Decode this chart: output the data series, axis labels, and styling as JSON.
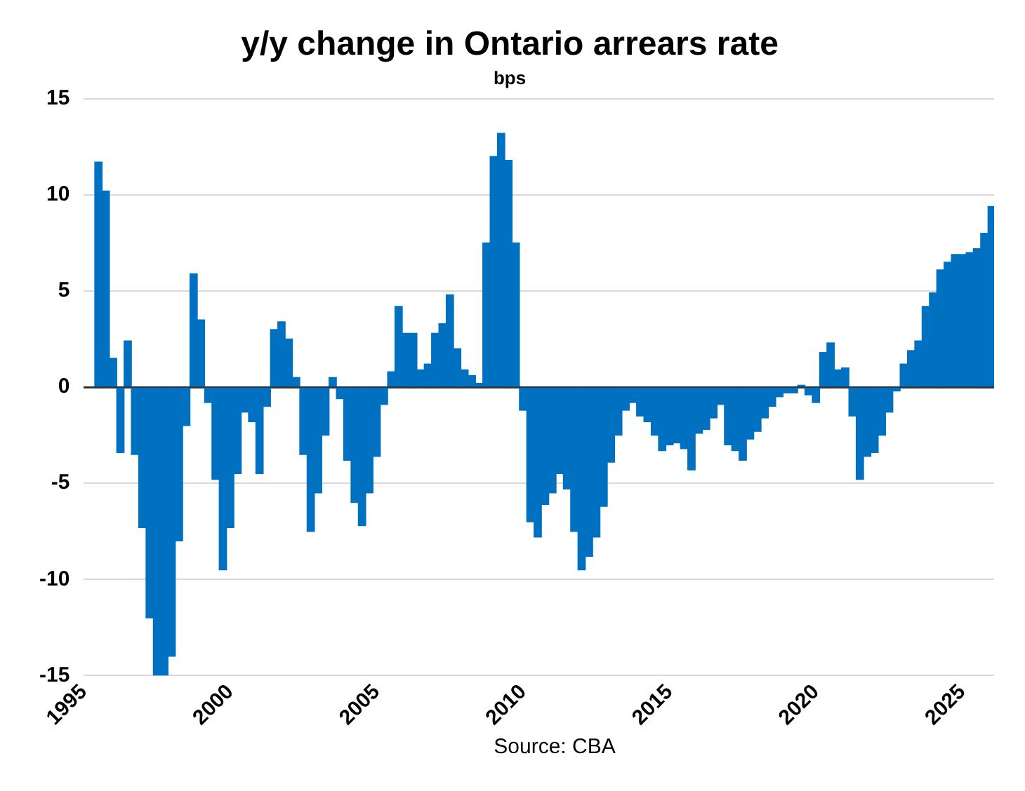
{
  "chart_data": {
    "type": "bar",
    "title": "y/y change in Ontario arrears rate",
    "subtitle": "bps",
    "annotations": [
      "Source:  CBA"
    ],
    "x": [
      "1995-07",
      "1995-10",
      "1996-01",
      "1996-04",
      "1996-07",
      "1996-10",
      "1997-01",
      "1997-04",
      "1997-07",
      "1997-10",
      "1998-01",
      "1998-04",
      "1998-07",
      "1998-10",
      "1999-01",
      "1999-04",
      "1999-07",
      "1999-10",
      "2000-01",
      "2000-04",
      "2000-07",
      "2000-10",
      "2001-01",
      "2001-04",
      "2001-07",
      "2001-10",
      "2002-01",
      "2002-04",
      "2002-07",
      "2002-10",
      "2003-01",
      "2003-04",
      "2003-07",
      "2003-10",
      "2004-01",
      "2004-04",
      "2004-07",
      "2004-10",
      "2005-01",
      "2005-04",
      "2005-07",
      "2005-10",
      "2006-01",
      "2006-04",
      "2006-07",
      "2006-10",
      "2007-01",
      "2007-04",
      "2007-07",
      "2007-10",
      "2008-01",
      "2008-04",
      "2008-07",
      "2008-10",
      "2009-01",
      "2009-04",
      "2009-07",
      "2009-10",
      "2010-01",
      "2010-04",
      "2010-07",
      "2010-10",
      "2011-01",
      "2011-04",
      "2011-07",
      "2011-10",
      "2012-01",
      "2012-04",
      "2012-07",
      "2012-10",
      "2013-01",
      "2013-04",
      "2013-07",
      "2013-10",
      "2014-01",
      "2014-04",
      "2014-07",
      "2014-10",
      "2015-01",
      "2015-04",
      "2015-07",
      "2015-10",
      "2016-01",
      "2016-04",
      "2016-07",
      "2016-10",
      "2017-01",
      "2017-04",
      "2017-07",
      "2017-10",
      "2018-01",
      "2018-04",
      "2018-07",
      "2018-10",
      "2019-01",
      "2019-04",
      "2019-07",
      "2019-10",
      "2020-01",
      "2020-04",
      "2020-07",
      "2020-10",
      "2021-01",
      "2021-04",
      "2021-07",
      "2021-10",
      "2022-01",
      "2022-04",
      "2022-07",
      "2022-10",
      "2023-01",
      "2023-04",
      "2023-07",
      "2023-10",
      "2024-01",
      "2024-04",
      "2024-07",
      "2024-10",
      "2025-01",
      "2025-04",
      "2025-07",
      "2025-10",
      "2026-01"
    ],
    "values": [
      11.7,
      10.2,
      1.5,
      -3.4,
      2.4,
      -3.5,
      -7.3,
      -12,
      -15,
      -15,
      -14,
      -8,
      -2,
      5.9,
      3.5,
      -0.8,
      -4.8,
      -9.5,
      -7.3,
      -4.5,
      -1.3,
      -1.8,
      -4.5,
      -1.0,
      3.0,
      3.4,
      2.5,
      0.5,
      -3.5,
      -7.5,
      -5.5,
      -2.5,
      0.5,
      -0.6,
      -3.8,
      -6,
      -7.2,
      -5.5,
      -3.6,
      -0.9,
      0.8,
      4.2,
      2.8,
      2.8,
      0.9,
      1.2,
      2.8,
      3.3,
      4.8,
      2,
      0.9,
      0.6,
      0.2,
      7.5,
      12,
      13.2,
      11.8,
      7.5,
      -1.2,
      -7,
      -7.8,
      -6.1,
      -5.5,
      -4.5,
      -5.3,
      -7.5,
      -9.5,
      -8.8,
      -7.8,
      -6.2,
      -3.9,
      -2.5,
      -1.2,
      -0.8,
      -1.5,
      -1.8,
      -2.5,
      -3.3,
      -3.0,
      -2.9,
      -3.2,
      -4.3,
      -2.4,
      -2.2,
      -1.6,
      -0.9,
      -3.0,
      -3.3,
      -3.8,
      -2.7,
      -2.3,
      -1.6,
      -1.0,
      -0.5,
      -0.3,
      -0.3,
      0.1,
      -0.4,
      -0.8,
      1.8,
      2.3,
      0.9,
      1.0,
      -1.5,
      -4.8,
      -3.6,
      -3.4,
      -2.5,
      -1.3,
      -0.2,
      1.2,
      1.9,
      2.4,
      4.2,
      4.9,
      6.1,
      6.5,
      6.9,
      6.9,
      7.0,
      7.2,
      8.0,
      9.4
    ],
    "color": "#0070c0",
    "xlim": [
      "1995",
      "2026-02"
    ],
    "xticks": [
      "1995",
      "2000",
      "2005",
      "2010",
      "2015",
      "2020",
      "2025"
    ],
    "ylim": [
      -15,
      15
    ],
    "yticks": [
      -15,
      -10,
      -5,
      0,
      5,
      10,
      15
    ],
    "grid": "y",
    "legend": false
  }
}
